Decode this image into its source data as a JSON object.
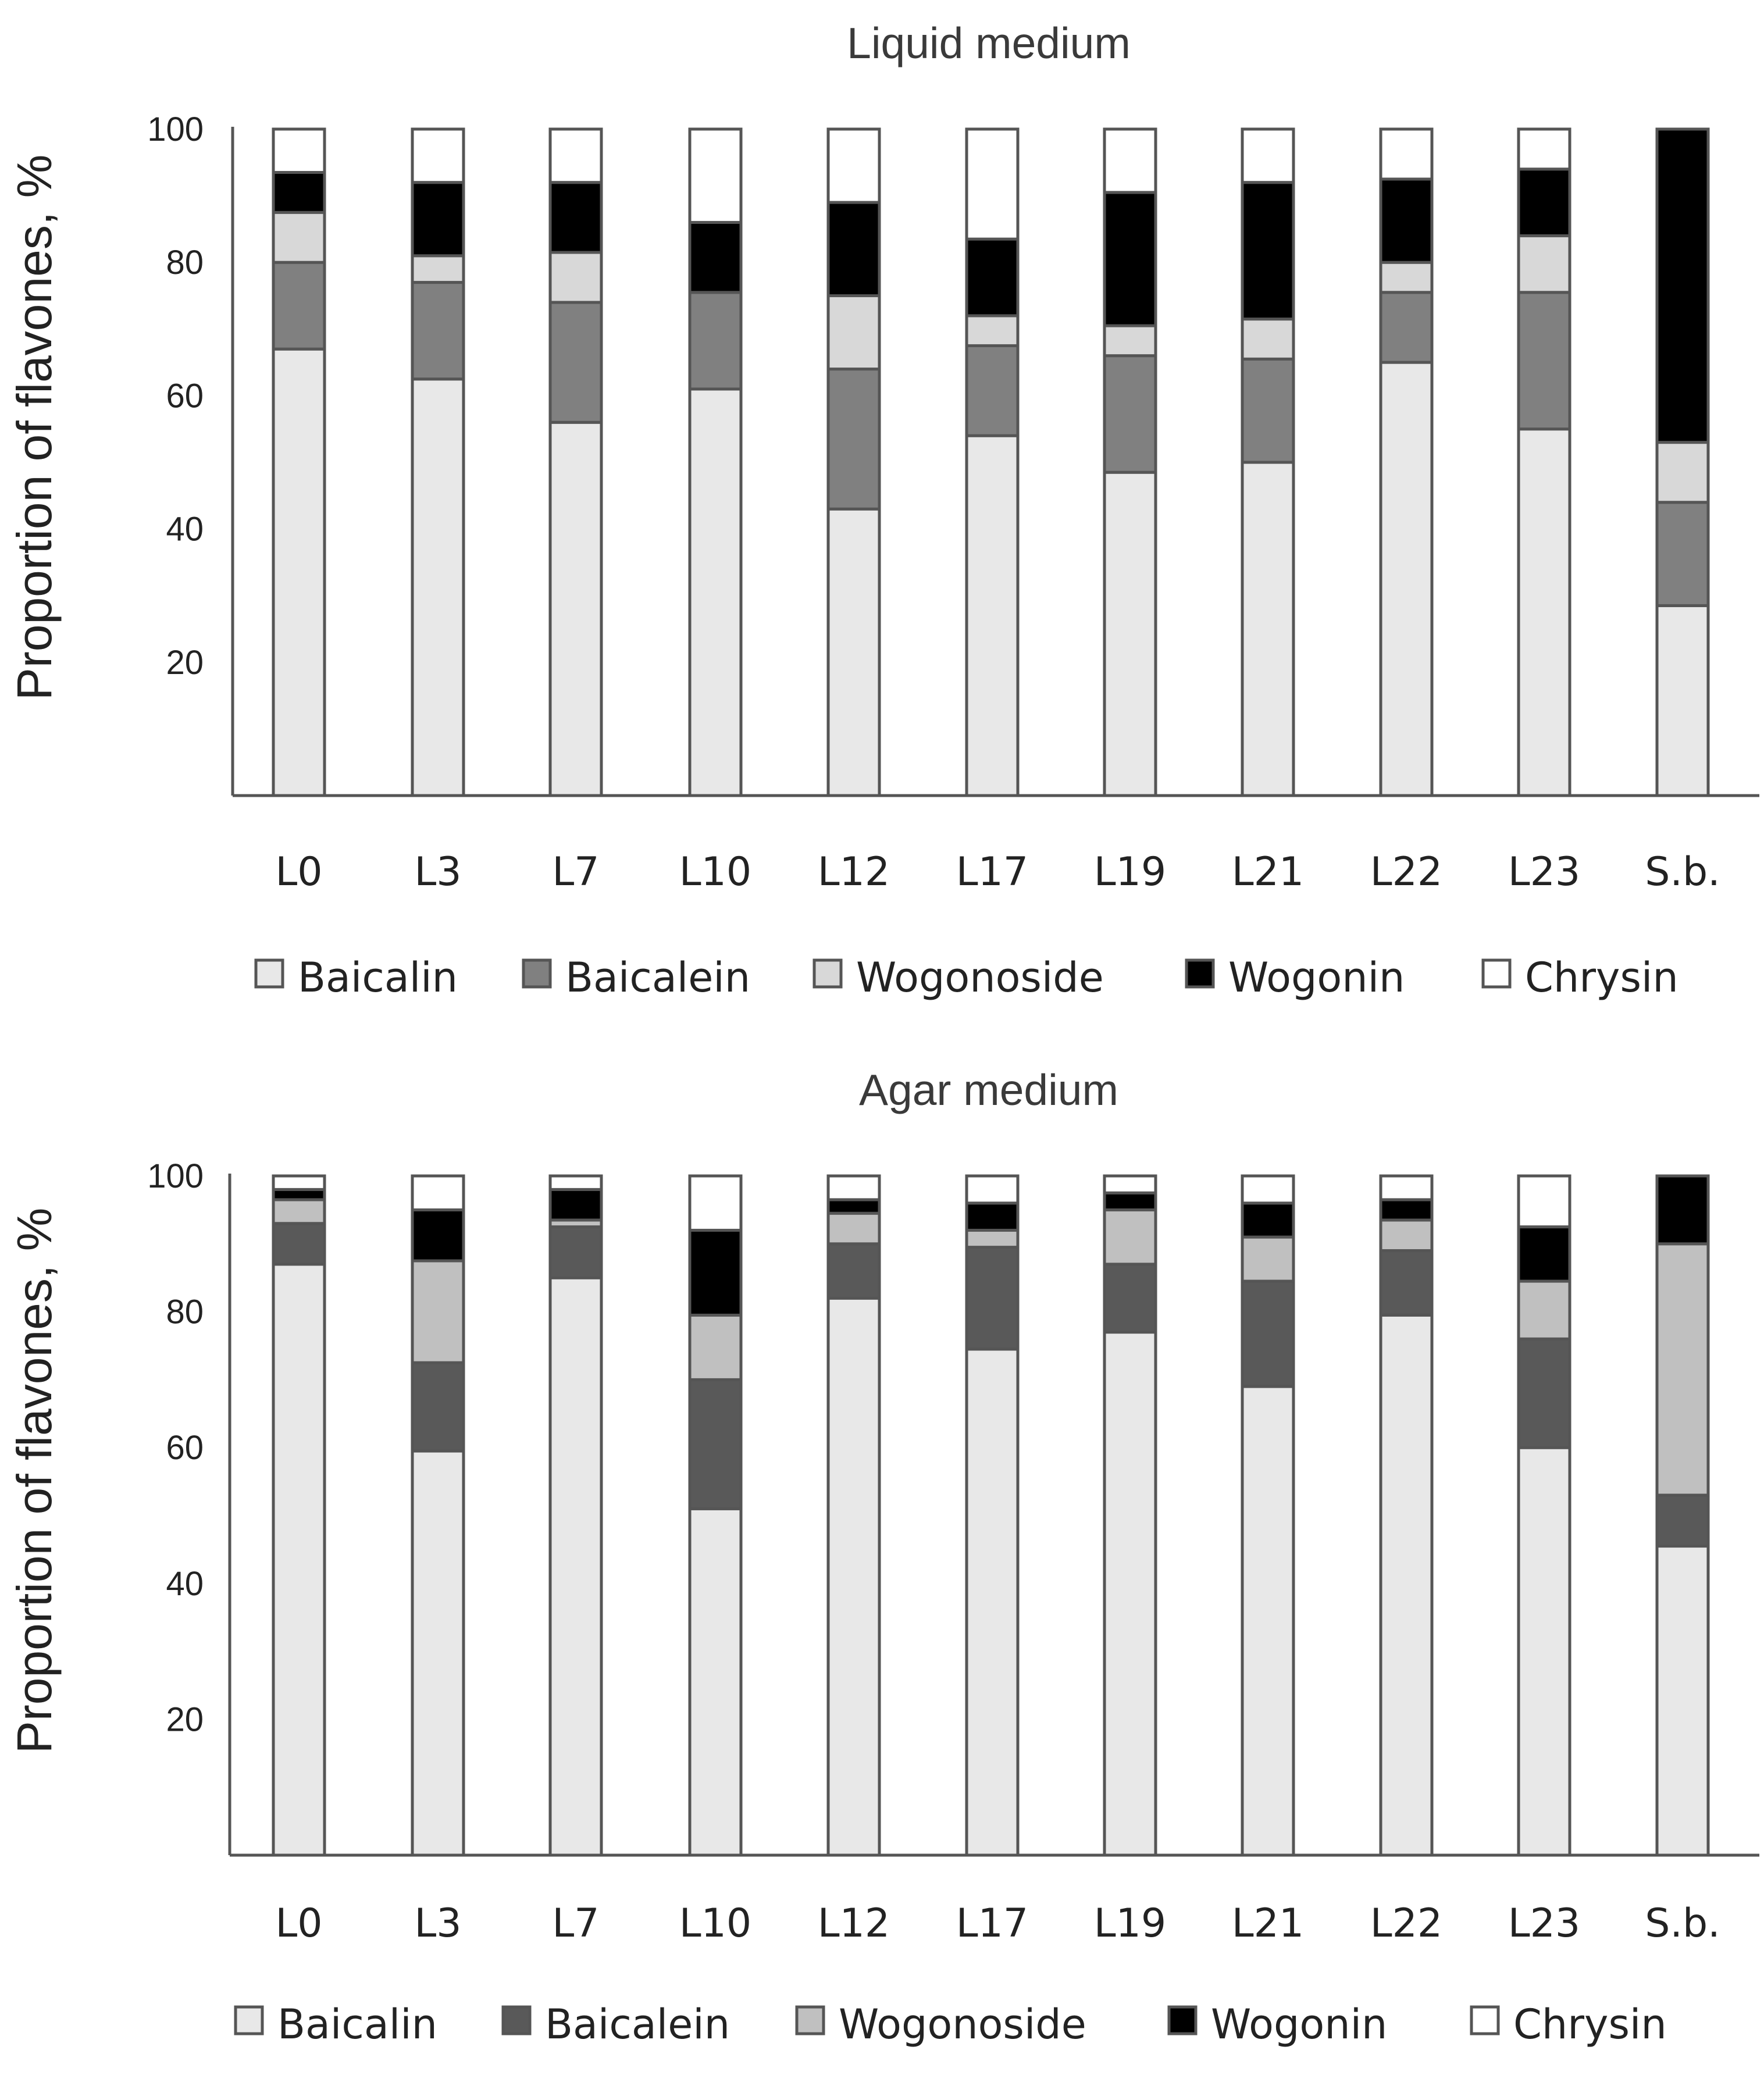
{
  "chart_data": [
    {
      "type": "bar",
      "stacked": true,
      "title": "Liquid medium",
      "xlabel": "",
      "ylabel": "Proportion of flavones, %",
      "ylim": [
        0,
        100
      ],
      "yticks": [
        "20",
        "40",
        "60",
        "80",
        "100"
      ],
      "categories": [
        "L0",
        "L3",
        "L7",
        "L10",
        "L12",
        "L17",
        "L19",
        "L21",
        "L22",
        "L23",
        "S.b."
      ],
      "legend_position": "bottom",
      "series": [
        {
          "name": "Baicalin",
          "color": "#e8e8e8",
          "values": [
            67,
            62.5,
            56,
            61,
            43,
            54,
            48.5,
            50,
            65,
            55,
            28.5
          ]
        },
        {
          "name": "Baicalein",
          "color": "#808080",
          "values": [
            13,
            14.5,
            18,
            14.5,
            21,
            13.5,
            17.5,
            15.5,
            10.5,
            20.5,
            15.5
          ]
        },
        {
          "name": "Wogonoside",
          "color": "#d8d8d8",
          "values": [
            7.5,
            4,
            7.5,
            0,
            11,
            4.5,
            4.5,
            6,
            4.5,
            8.5,
            9
          ]
        },
        {
          "name": "Wogonin",
          "color": "#000000",
          "values": [
            6,
            11,
            10.5,
            10.5,
            14,
            11.5,
            20,
            20.5,
            12.5,
            10,
            47
          ]
        },
        {
          "name": "Chrysin",
          "color": "#ffffff",
          "values": [
            6.5,
            8,
            8,
            14,
            11,
            16.5,
            9.5,
            8,
            7.5,
            6,
            0
          ]
        }
      ]
    },
    {
      "type": "bar",
      "stacked": true,
      "title": "Agar medium",
      "xlabel": "",
      "ylabel": "Proportion of flavones, %",
      "ylim": [
        0,
        100
      ],
      "yticks": [
        "20",
        "40",
        "60",
        "80",
        "100"
      ],
      "categories": [
        "L0",
        "L3",
        "L7",
        "L10",
        "L12",
        "L17",
        "L19",
        "L21",
        "L22",
        "L23",
        "S.b."
      ],
      "legend_position": "bottom",
      "series": [
        {
          "name": "Baicalin",
          "color": "#e8e8e8",
          "values": [
            87,
            59.5,
            85,
            51,
            82,
            74.5,
            77,
            69,
            79.5,
            60,
            45.5
          ]
        },
        {
          "name": "Baicalein",
          "color": "#595959",
          "values": [
            6,
            13,
            7.5,
            19,
            8,
            15,
            10,
            15.5,
            9.5,
            16,
            7.5
          ]
        },
        {
          "name": "Wogonoside",
          "color": "#c0c0c0",
          "values": [
            3.5,
            15,
            1,
            9.5,
            4.5,
            2.5,
            8,
            6.5,
            4.5,
            8.5,
            37
          ]
        },
        {
          "name": "Wogonin",
          "color": "#000000",
          "values": [
            1.5,
            7.5,
            4.5,
            12.5,
            2,
            4,
            2.5,
            5,
            3,
            8,
            10
          ]
        },
        {
          "name": "Chrysin",
          "color": "#ffffff",
          "values": [
            2,
            5,
            2,
            8,
            3.5,
            4,
            2.5,
            4,
            3.5,
            7.5,
            0
          ]
        }
      ]
    }
  ]
}
